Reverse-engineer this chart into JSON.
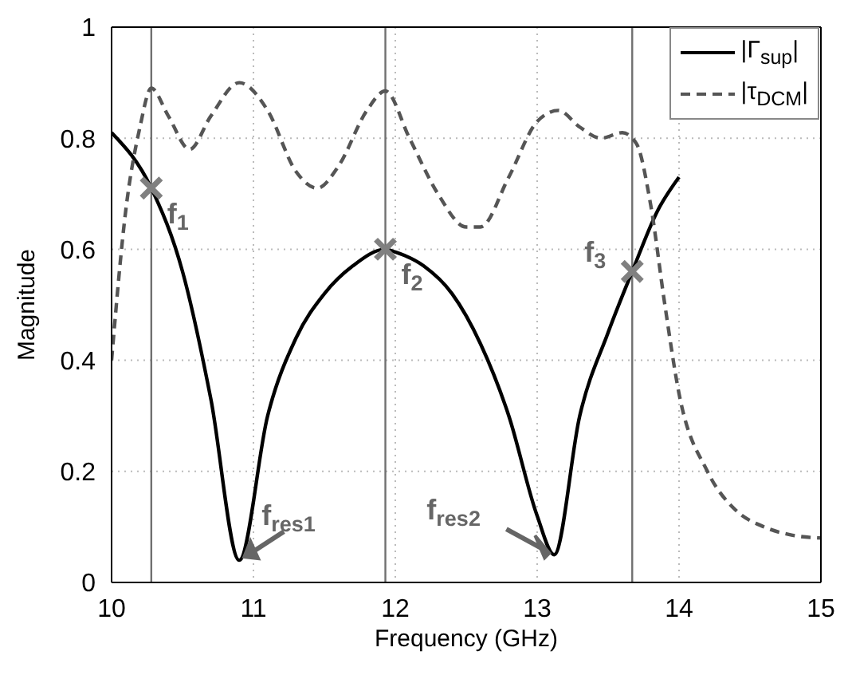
{
  "chart_data": {
    "type": "line",
    "xlabel": "Frequency (GHz)",
    "ylabel": "Magnitude",
    "xlim": [
      10,
      15
    ],
    "xticks": [
      10,
      11,
      12,
      13,
      14,
      15
    ],
    "ylim": [
      0,
      1
    ],
    "yticks": [
      0,
      0.2,
      0.4,
      0.6,
      0.8,
      1
    ],
    "grid": true,
    "legend": "top right",
    "series": [
      {
        "name": "|Γ$_{sup}$|",
        "color": "#000000",
        "line_style": "solid",
        "x": [
          10,
          10.28,
          10.5,
          10.7,
          10.9,
          11.1,
          11.3,
          11.5,
          11.7,
          11.93,
          12.0,
          12.2,
          12.4,
          12.6,
          12.8,
          13.0,
          13.12,
          13.3,
          13.5,
          13.67,
          13.85,
          14.0
        ],
        "values": [
          0.81,
          0.71,
          0.56,
          0.33,
          0.04,
          0.3,
          0.44,
          0.52,
          0.57,
          0.6,
          0.595,
          0.57,
          0.52,
          0.43,
          0.3,
          0.12,
          0.05,
          0.3,
          0.45,
          0.56,
          0.67,
          0.73
        ]
      },
      {
        "name": "|τ$_{DCM}$|",
        "color": "#555555",
        "line_style": "dashed",
        "x": [
          10,
          10.1,
          10.2,
          10.28,
          10.4,
          10.55,
          10.7,
          10.9,
          11.1,
          11.3,
          11.45,
          11.6,
          11.8,
          11.93,
          12.1,
          12.3,
          12.5,
          12.6,
          12.8,
          13.0,
          13.15,
          13.3,
          13.45,
          13.6,
          13.7,
          13.8,
          13.9,
          14.0,
          14.2,
          14.4,
          14.6,
          14.8,
          15
        ],
        "values": [
          0.4,
          0.67,
          0.82,
          0.89,
          0.84,
          0.78,
          0.84,
          0.9,
          0.85,
          0.74,
          0.71,
          0.75,
          0.85,
          0.885,
          0.8,
          0.7,
          0.64,
          0.64,
          0.73,
          0.83,
          0.85,
          0.82,
          0.8,
          0.81,
          0.79,
          0.68,
          0.5,
          0.34,
          0.2,
          0.13,
          0.1,
          0.085,
          0.08
        ]
      },
      {
        "type": "scatter",
        "color": "#808080",
        "marker": "cross",
        "x": [
          10.28,
          11.93,
          13.67
        ],
        "values": [
          0.71,
          0.6,
          0.56
        ]
      }
    ],
    "ref_lines": [
      {
        "axis": "x",
        "value": 10.28,
        "color": "#707070"
      },
      {
        "axis": "x",
        "value": 11.93,
        "color": "#707070"
      },
      {
        "axis": "x",
        "value": 13.67,
        "color": "#707070"
      }
    ],
    "annotations": [
      {
        "text": "f$_{1}$",
        "x": 10.28,
        "y": 0.71
      },
      {
        "text": "f$_{2}$",
        "x": 11.93,
        "y": 0.6
      },
      {
        "text": "f$_{3}$",
        "x": 13.67,
        "y": 0.56
      },
      {
        "text": "f$_{res1}$",
        "x": 10.9,
        "y": 0.04
      },
      {
        "text": "f$_{res2}$",
        "x": 13.12,
        "y": 0.05
      }
    ]
  }
}
